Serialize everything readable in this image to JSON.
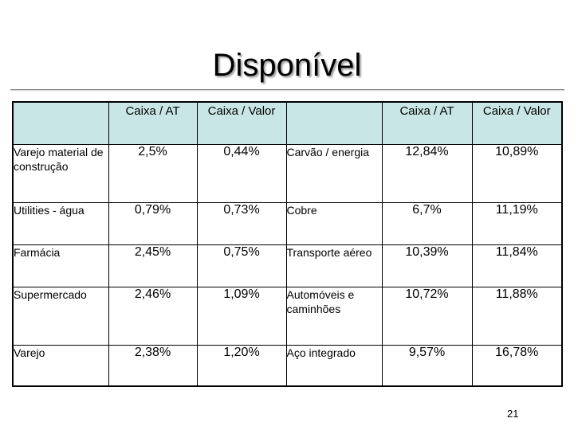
{
  "title": "Disponível",
  "table": {
    "headers": [
      "",
      "Caixa / AT",
      "Caixa / Valor",
      "",
      "Caixa / AT",
      "Caixa / Valor"
    ],
    "rows": [
      {
        "sector_a": "Varejo material de construção",
        "cat_a": "2,5%",
        "cva_a": "0,44%",
        "sector_b": "Carvão / energia",
        "cat_b": "12,84%",
        "cva_b": "10,89%"
      },
      {
        "sector_a": "Utilities - água",
        "cat_a": "0,79%",
        "cva_a": "0,73%",
        "sector_b": "Cobre",
        "cat_b": "6,7%",
        "cva_b": "11,19%"
      },
      {
        "sector_a": "Farmácia",
        "cat_a": "2,45%",
        "cva_a": "0,75%",
        "sector_b": "Transporte aéreo",
        "cat_b": "10,39%",
        "cva_b": "11,84%"
      },
      {
        "sector_a": "Supermercado",
        "cat_a": "2,46%",
        "cva_a": "1,09%",
        "sector_b": "Automóveis e caminhões",
        "cat_b": "10,72%",
        "cva_b": "11,88%"
      },
      {
        "sector_a": "Varejo",
        "cat_a": "2,38%",
        "cva_a": "1,20%",
        "sector_b": "Aço integrado",
        "cat_b": "9,57%",
        "cva_b": "16,78%"
      }
    ]
  },
  "page_number": "21",
  "colors": {
    "header_fill": "#c8e6e6",
    "border": "#000000"
  }
}
